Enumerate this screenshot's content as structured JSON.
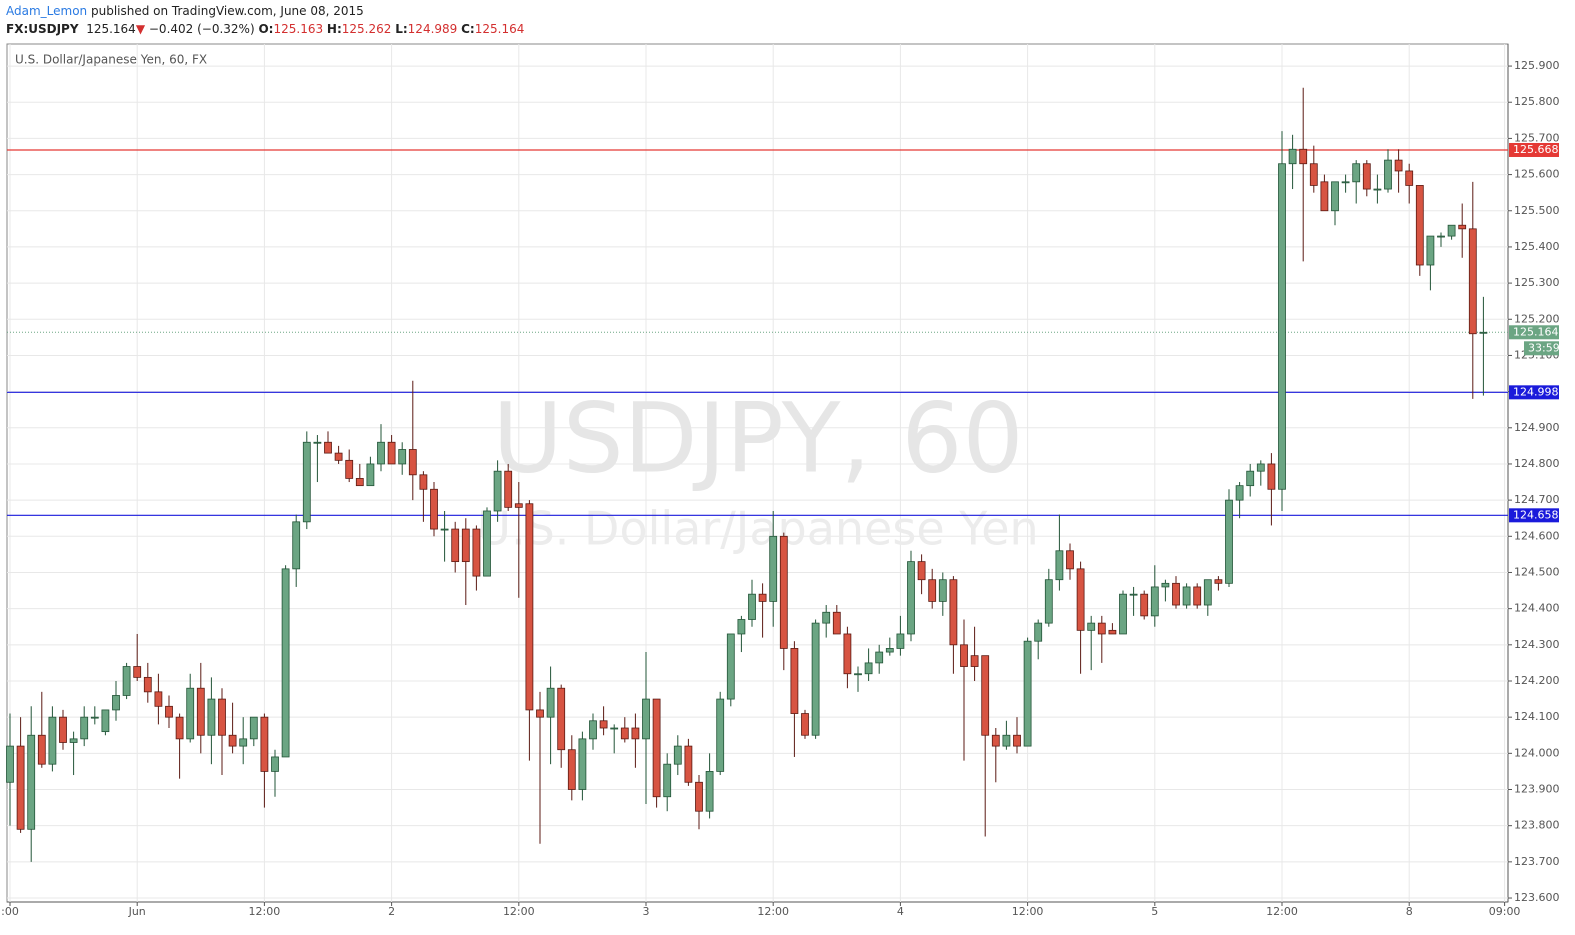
{
  "header": {
    "author": "Adam_Lemon",
    "published": "published on TradingView.com, June 08, 2015",
    "symbol": "FX:USDJPY",
    "price": "125.164",
    "change": "−0.402 (−0.32%)",
    "quote": [
      {
        "label": "O:",
        "value": "125.163"
      },
      {
        "label": "H:",
        "value": "125.262"
      },
      {
        "label": "L:",
        "value": "124.989"
      },
      {
        "label": "C:",
        "value": "125.164"
      }
    ]
  },
  "chart_data": {
    "type": "candlestick",
    "subtitle": "U.S. Dollar/Japanese Yen, 60, FX",
    "watermark": [
      "USDJPY, 60",
      "U.S. Dollar/Japanese Yen"
    ],
    "up_color": "#6ba583",
    "down_color": "#d75442",
    "grid": true,
    "ylim": [
      123.589,
      125.961
    ],
    "yticks": [
      {
        "value": 125.9,
        "label": "125.900"
      },
      {
        "value": 125.8,
        "label": "125.800"
      },
      {
        "value": 125.7,
        "label": "125.700"
      },
      {
        "value": 125.6,
        "label": "125.600"
      },
      {
        "value": 125.5,
        "label": "125.500"
      },
      {
        "value": 125.4,
        "label": "125.400"
      },
      {
        "value": 125.3,
        "label": "125.300"
      },
      {
        "value": 125.2,
        "label": "125.200"
      },
      {
        "value": 125.1,
        "label": "125.100"
      },
      {
        "value": 125.0,
        "label": "125.000"
      },
      {
        "value": 124.9,
        "label": "124.900"
      },
      {
        "value": 124.8,
        "label": "124.800"
      },
      {
        "value": 124.7,
        "label": "124.700"
      },
      {
        "value": 124.6,
        "label": "124.600"
      },
      {
        "value": 124.5,
        "label": "124.500"
      },
      {
        "value": 124.4,
        "label": "124.400"
      },
      {
        "value": 124.3,
        "label": "124.300"
      },
      {
        "value": 124.2,
        "label": "124.200"
      },
      {
        "value": 124.1,
        "label": "124.100"
      },
      {
        "value": 124.0,
        "label": "124.000"
      },
      {
        "value": 123.9,
        "label": "123.900"
      },
      {
        "value": 123.8,
        "label": "123.800"
      },
      {
        "value": 123.7,
        "label": "123.700"
      },
      {
        "value": 123.6,
        "label": "123.600"
      }
    ],
    "levels": [
      {
        "value": 125.668,
        "color": "#e53935"
      },
      {
        "value": 124.998,
        "color": "#1a1adb"
      },
      {
        "value": 124.658,
        "color": "#1a1adb"
      }
    ],
    "current": {
      "value": 125.164,
      "countdown": "33:59",
      "color": "#6ba583"
    },
    "categories": [
      ":00",
      null,
      null,
      null,
      null,
      null,
      null,
      null,
      null,
      null,
      null,
      null,
      "Jun",
      null,
      null,
      null,
      null,
      null,
      null,
      null,
      null,
      null,
      null,
      null,
      "12:00",
      null,
      null,
      null,
      null,
      null,
      null,
      null,
      null,
      null,
      null,
      null,
      "2",
      null,
      null,
      null,
      null,
      null,
      null,
      null,
      null,
      null,
      null,
      null,
      "12:00",
      null,
      null,
      null,
      null,
      null,
      null,
      null,
      null,
      null,
      null,
      null,
      "3",
      null,
      null,
      null,
      null,
      null,
      null,
      null,
      null,
      null,
      null,
      null,
      "12:00",
      null,
      null,
      null,
      null,
      null,
      null,
      null,
      null,
      null,
      null,
      null,
      "4",
      null,
      null,
      null,
      null,
      null,
      null,
      null,
      null,
      null,
      null,
      null,
      "12:00",
      null,
      null,
      null,
      null,
      null,
      null,
      null,
      null,
      null,
      null,
      null,
      "5",
      null,
      null,
      null,
      null,
      null,
      null,
      null,
      null,
      null,
      null,
      null,
      "12:00",
      null,
      null,
      null,
      null,
      null,
      null,
      null,
      null,
      null,
      null,
      null,
      "8",
      null,
      null,
      null,
      null,
      null,
      null,
      null,
      null,
      "09:00"
    ],
    "open": [
      123.92,
      124.02,
      123.79,
      124.05,
      123.97,
      124.1,
      124.03,
      124.04,
      124.1,
      124.06,
      124.12,
      124.16,
      124.24,
      124.21,
      124.17,
      124.13,
      124.1,
      124.04,
      124.18,
      124.05,
      124.15,
      124.05,
      124.02,
      124.04,
      124.1,
      123.95,
      123.99,
      124.51,
      124.64,
      124.86,
      124.86,
      124.83,
      124.81,
      124.76,
      124.74,
      124.8,
      124.86,
      124.8,
      124.84,
      124.77,
      124.73,
      124.62,
      124.62,
      124.62,
      124.62,
      124.49,
      124.67,
      124.78,
      124.69,
      124.69,
      124.12,
      124.1,
      124.18,
      124.01,
      123.9,
      124.04,
      124.09,
      124.07,
      124.07,
      124.07,
      124.04,
      124.15,
      123.88,
      123.97,
      124.02,
      123.92,
      123.84,
      123.95,
      124.15,
      124.33,
      124.37,
      124.44,
      124.42,
      124.6,
      124.29,
      124.11,
      124.05,
      124.36,
      124.39,
      124.33,
      124.22,
      124.22,
      124.25,
      124.28,
      124.29,
      124.33,
      124.53,
      124.48,
      124.42,
      124.48,
      124.3,
      124.27,
      124.27,
      124.05,
      124.02,
      124.05,
      124.02,
      124.31,
      124.36,
      124.48,
      124.56,
      124.51,
      124.34,
      124.36,
      124.34,
      124.33,
      124.44,
      124.44,
      124.38,
      124.46,
      124.47,
      124.41,
      124.46,
      124.41,
      124.48,
      124.47,
      124.7,
      124.74,
      124.78,
      124.8,
      124.73,
      125.63,
      125.67,
      125.63,
      125.58,
      125.5,
      125.58,
      125.58,
      125.63,
      125.56,
      125.56,
      125.64,
      125.61,
      125.57,
      125.35,
      125.43,
      125.43,
      125.46,
      125.45,
      125.163,
      null,
      null
    ],
    "high": [
      124.11,
      124.1,
      124.13,
      124.17,
      124.13,
      124.12,
      124.06,
      124.13,
      124.13,
      124.12,
      124.2,
      124.25,
      124.33,
      124.25,
      124.22,
      124.16,
      124.11,
      124.22,
      124.25,
      124.21,
      124.18,
      124.14,
      124.1,
      124.1,
      124.11,
      124.01,
      124.52,
      124.66,
      124.89,
      124.88,
      124.89,
      124.85,
      124.84,
      124.8,
      124.82,
      124.91,
      124.88,
      124.86,
      125.03,
      124.78,
      124.75,
      124.67,
      124.64,
      124.65,
      124.63,
      124.68,
      124.81,
      124.8,
      124.75,
      124.7,
      124.17,
      124.24,
      124.19,
      124.05,
      124.06,
      124.11,
      124.13,
      124.08,
      124.1,
      124.11,
      124.28,
      124.15,
      124.0,
      124.05,
      124.04,
      123.94,
      124.0,
      124.17,
      124.32,
      124.38,
      124.48,
      124.47,
      124.67,
      124.61,
      124.31,
      124.12,
      124.37,
      124.41,
      124.41,
      124.35,
      124.24,
      124.29,
      124.3,
      124.32,
      124.38,
      124.56,
      124.55,
      124.51,
      124.5,
      124.49,
      124.37,
      124.35,
      124.27,
      124.07,
      124.09,
      124.1,
      124.32,
      124.37,
      124.51,
      124.66,
      124.58,
      124.53,
      124.38,
      124.38,
      124.36,
      124.45,
      124.46,
      124.45,
      124.52,
      124.48,
      124.49,
      124.47,
      124.47,
      124.48,
      124.49,
      124.73,
      124.75,
      124.8,
      124.81,
      124.83,
      125.72,
      125.71,
      125.84,
      125.68,
      125.6,
      125.58,
      125.6,
      125.64,
      125.64,
      125.6,
      125.67,
      125.67,
      125.63,
      125.57,
      125.43,
      125.44,
      125.46,
      125.52,
      125.58,
      125.262,
      null,
      null
    ],
    "low": [
      123.8,
      123.78,
      123.7,
      123.96,
      123.95,
      124.01,
      123.94,
      124.02,
      124.08,
      124.05,
      124.09,
      124.15,
      124.2,
      124.14,
      124.08,
      124.07,
      123.93,
      124.03,
      124.0,
      123.97,
      123.94,
      124.0,
      123.97,
      124.02,
      123.85,
      123.88,
      123.99,
      124.46,
      124.62,
      124.75,
      124.83,
      124.8,
      124.75,
      124.74,
      124.74,
      124.78,
      124.8,
      124.77,
      124.7,
      124.64,
      124.6,
      124.53,
      124.5,
      124.41,
      124.45,
      124.49,
      124.64,
      124.67,
      124.43,
      123.98,
      123.75,
      123.97,
      123.96,
      123.87,
      123.87,
      124.01,
      124.05,
      124.0,
      124.03,
      123.96,
      123.86,
      123.85,
      123.84,
      123.94,
      123.91,
      123.79,
      123.82,
      123.94,
      124.13,
      124.28,
      124.35,
      124.32,
      124.35,
      124.23,
      123.99,
      124.04,
      124.04,
      124.32,
      124.33,
      124.18,
      124.17,
      124.2,
      124.22,
      124.27,
      124.27,
      124.31,
      124.44,
      124.4,
      124.38,
      124.22,
      123.98,
      124.2,
      123.77,
      123.92,
      124.01,
      124.0,
      124.02,
      124.26,
      124.35,
      124.45,
      124.48,
      124.22,
      124.23,
      124.25,
      124.33,
      124.33,
      124.38,
      124.37,
      124.35,
      124.42,
      124.4,
      124.4,
      124.4,
      124.38,
      124.45,
      124.46,
      124.65,
      124.71,
      124.74,
      124.63,
      124.67,
      125.56,
      125.36,
      125.55,
      125.5,
      125.46,
      125.55,
      125.52,
      125.54,
      125.52,
      125.55,
      125.55,
      125.52,
      125.32,
      125.28,
      125.4,
      125.42,
      125.37,
      124.98,
      124.989,
      null,
      null
    ],
    "close": [
      124.02,
      123.79,
      124.05,
      123.97,
      124.1,
      124.03,
      124.04,
      124.1,
      124.1,
      124.12,
      124.16,
      124.24,
      124.21,
      124.17,
      124.13,
      124.1,
      124.04,
      124.18,
      124.05,
      124.15,
      124.05,
      124.02,
      124.04,
      124.1,
      123.95,
      123.99,
      124.51,
      124.64,
      124.86,
      124.86,
      124.83,
      124.81,
      124.76,
      124.74,
      124.8,
      124.86,
      124.8,
      124.84,
      124.77,
      124.73,
      124.62,
      124.62,
      124.53,
      124.53,
      124.49,
      124.67,
      124.78,
      124.68,
      124.68,
      124.12,
      124.1,
      124.18,
      124.01,
      123.9,
      124.04,
      124.09,
      124.07,
      124.07,
      124.04,
      124.04,
      124.15,
      123.88,
      123.97,
      124.02,
      123.92,
      123.84,
      123.95,
      124.15,
      124.33,
      124.37,
      124.44,
      124.42,
      124.6,
      124.29,
      124.11,
      124.05,
      124.36,
      124.39,
      124.33,
      124.22,
      124.22,
      124.25,
      124.28,
      124.29,
      124.33,
      124.53,
      124.48,
      124.42,
      124.48,
      124.3,
      124.24,
      124.24,
      124.05,
      124.02,
      124.05,
      124.02,
      124.31,
      124.36,
      124.48,
      124.56,
      124.51,
      124.34,
      124.36,
      124.33,
      124.33,
      124.44,
      124.44,
      124.38,
      124.46,
      124.47,
      124.41,
      124.46,
      124.41,
      124.48,
      124.47,
      124.7,
      124.74,
      124.78,
      124.8,
      124.73,
      125.63,
      125.67,
      125.63,
      125.57,
      125.5,
      125.58,
      125.58,
      125.63,
      125.56,
      125.56,
      125.64,
      125.61,
      125.57,
      125.35,
      125.43,
      125.43,
      125.46,
      125.45,
      125.16,
      125.164,
      null,
      null
    ]
  }
}
